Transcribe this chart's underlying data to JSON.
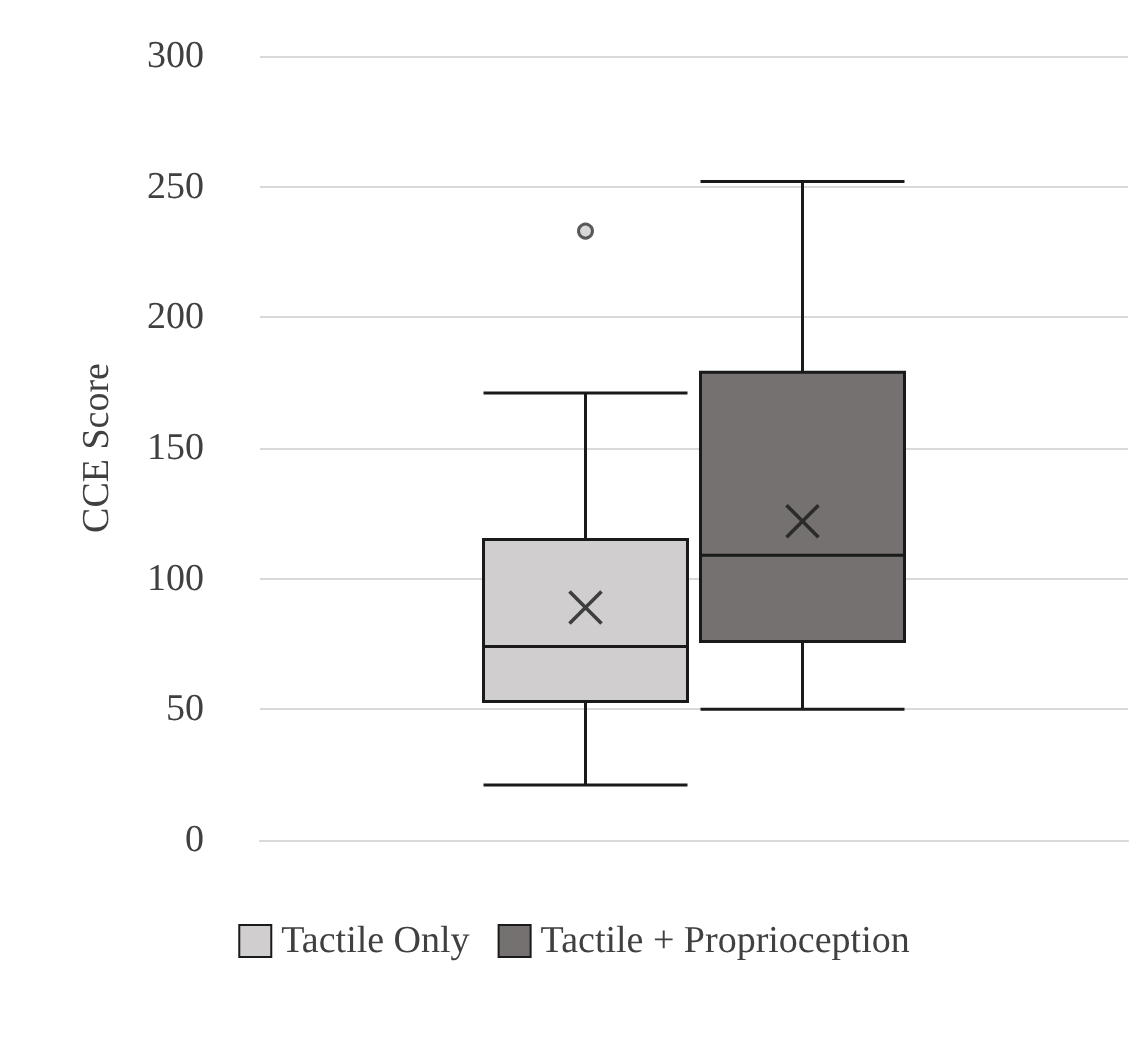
{
  "chart_data": {
    "type": "box",
    "ylabel": "CCE Score",
    "categories": [
      null
    ],
    "ylim": [
      0,
      300
    ],
    "yticks": [
      0,
      50,
      100,
      150,
      200,
      250,
      300
    ],
    "grid": "y",
    "legend": "bottom",
    "series": [
      {
        "name": "Tactile Only",
        "color": "#d0cecf",
        "boxes": [
          {
            "low": 21,
            "q1": 53,
            "median": 74,
            "q3": 115,
            "high": 171,
            "mean": 89,
            "outliers": [
              233
            ]
          }
        ]
      },
      {
        "name": "Tactile + Proprioception",
        "color": "#767171",
        "boxes": [
          {
            "low": 50,
            "q1": 76,
            "median": 109,
            "q3": 179,
            "high": 252,
            "mean": 122
          }
        ]
      }
    ]
  }
}
